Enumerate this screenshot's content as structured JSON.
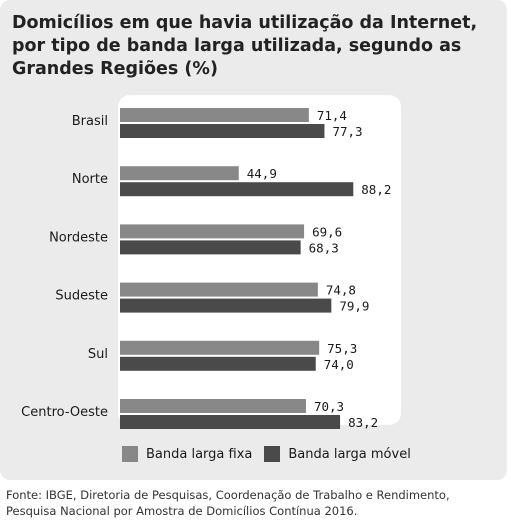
{
  "title_lines": [
    "Domicílios em que havia utilização da Internet,",
    "por tipo de banda larga utilizada, segundo as",
    "Grandes Regiões (%)"
  ],
  "chart_data": {
    "type": "bar",
    "orientation": "horizontal",
    "title": "Domicílios em que havia utilização da Internet, por tipo de banda larga utilizada, segundo as Grandes Regiões (%)",
    "categories": [
      "Brasil",
      "Norte",
      "Nordeste",
      "Sudeste",
      "Sul",
      "Centro-Oeste"
    ],
    "series": [
      {
        "name": "Banda larga fixa",
        "values": [
          71.4,
          44.9,
          69.6,
          74.8,
          75.3,
          70.3
        ],
        "color": "#888888",
        "labels": [
          "71,4",
          "44,9",
          "69,6",
          "74,8",
          "75,3",
          "70,3"
        ]
      },
      {
        "name": "Banda larga móvel",
        "values": [
          77.3,
          88.2,
          68.3,
          79.9,
          74.0,
          83.2
        ],
        "color": "#4a4a4a",
        "labels": [
          "77,3",
          "88,2",
          "68,3",
          "79,9",
          "74,0",
          "83,2"
        ]
      }
    ],
    "legend_position": "bottom",
    "grid": false
  },
  "legend": {
    "fixed_label": "Banda larga fixa",
    "mobile_label": "Banda larga móvel",
    "fixed_color": "#888888",
    "mobile_color": "#4a4a4a"
  },
  "source_lines": [
    "Fonte: IBGE, Diretoria de Pesquisas, Coordenação de Trabalho e Rendimento,",
    "Pesquisa Nacional por Amostra de Domicílios Contínua 2016."
  ]
}
